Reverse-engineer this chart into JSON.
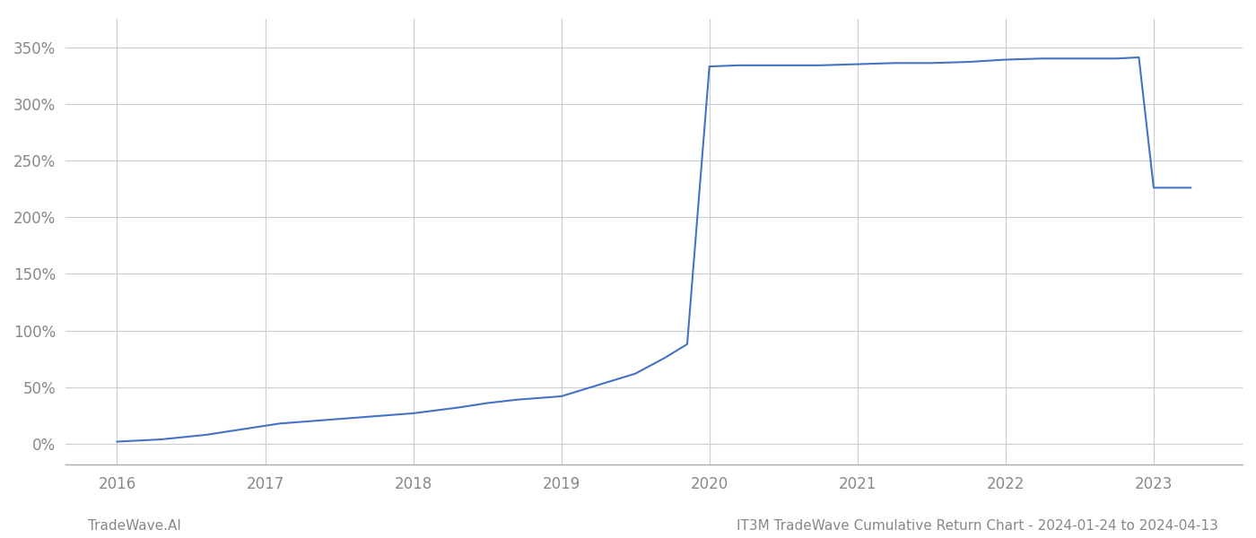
{
  "x_values": [
    2016.0,
    2016.3,
    2016.6,
    2016.9,
    2017.1,
    2017.4,
    2017.7,
    2018.0,
    2018.3,
    2018.5,
    2018.7,
    2019.0,
    2019.3,
    2019.5,
    2019.7,
    2019.85,
    2020.0,
    2020.2,
    2020.5,
    2020.75,
    2021.0,
    2021.25,
    2021.5,
    2021.75,
    2022.0,
    2022.25,
    2022.5,
    2022.75,
    2022.9,
    2023.0,
    2023.25
  ],
  "y_values": [
    2,
    4,
    8,
    14,
    18,
    21,
    24,
    27,
    32,
    36,
    39,
    42,
    54,
    62,
    76,
    88,
    333,
    334,
    334,
    334,
    335,
    336,
    336,
    337,
    339,
    340,
    340,
    340,
    341,
    226,
    226
  ],
  "line_color": "#4472c4",
  "line_width": 1.5,
  "background_color": "#ffffff",
  "grid_color": "#cccccc",
  "tick_color": "#888888",
  "ylabel_values": [
    0,
    50,
    100,
    150,
    200,
    250,
    300,
    350
  ],
  "x_tick_labels": [
    "2016",
    "2017",
    "2018",
    "2019",
    "2020",
    "2021",
    "2022",
    "2023"
  ],
  "x_tick_positions": [
    2016,
    2017,
    2018,
    2019,
    2020,
    2021,
    2022,
    2023
  ],
  "xlim": [
    2015.65,
    2023.6
  ],
  "ylim": [
    -18,
    375
  ],
  "footer_left": "TradeWave.AI",
  "footer_right": "IT3M TradeWave Cumulative Return Chart - 2024-01-24 to 2024-04-13",
  "footer_color": "#888888",
  "footer_fontsize": 11
}
